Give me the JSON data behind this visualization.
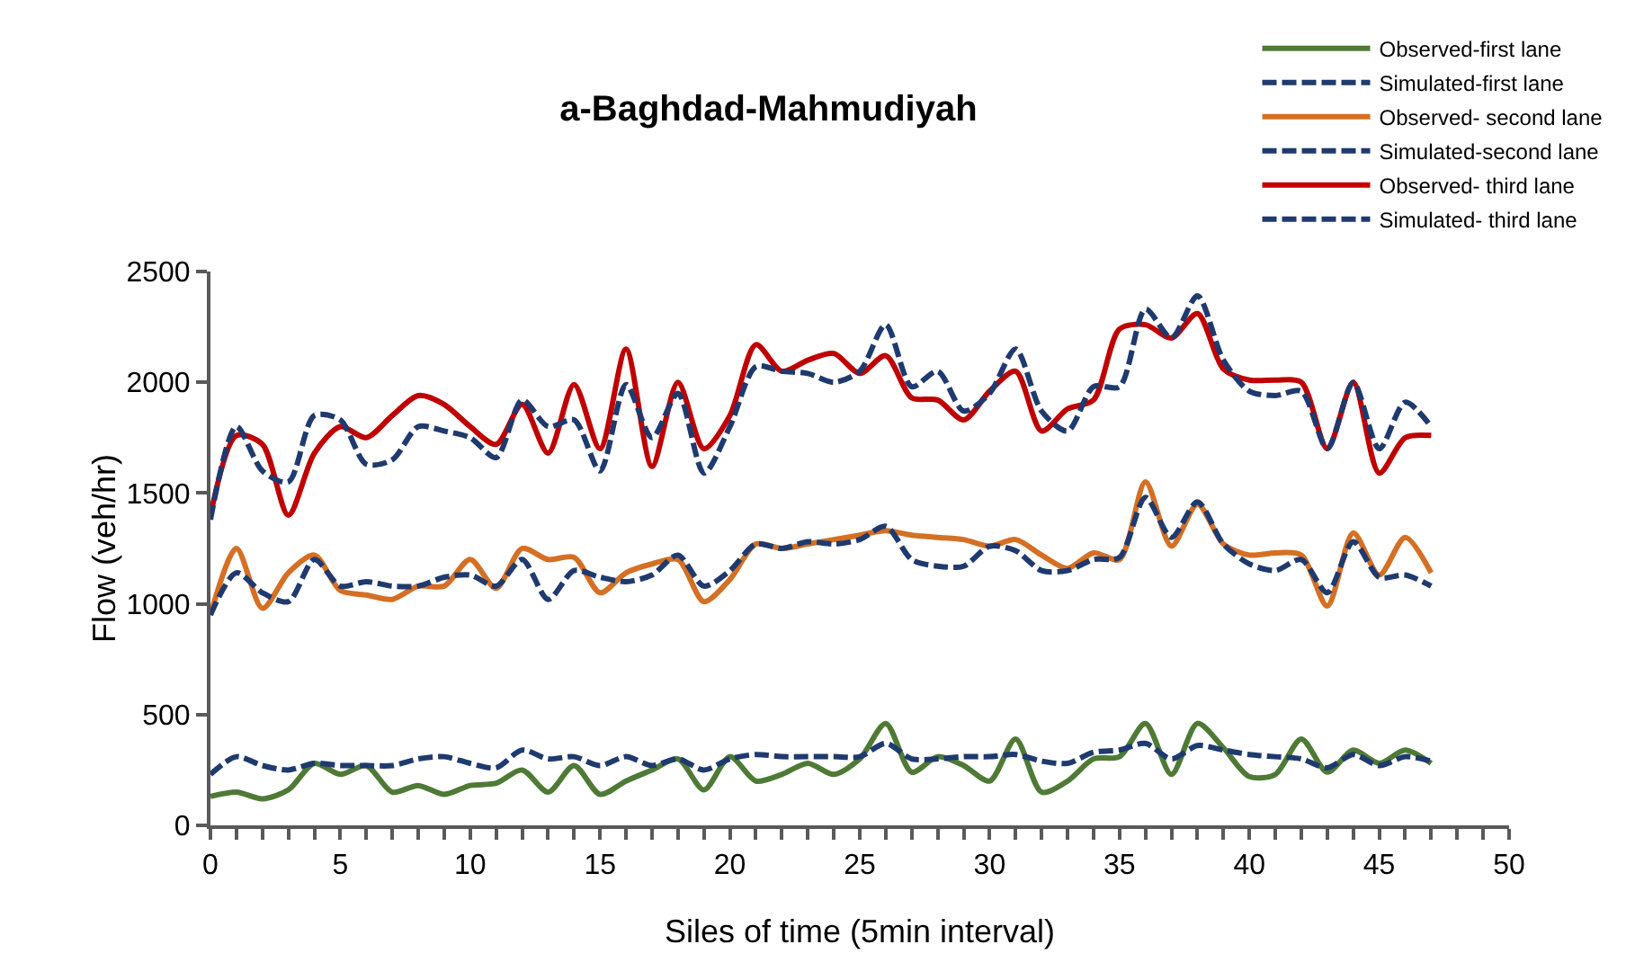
{
  "chart_data": {
    "type": "line",
    "title": "a-Baghdad-Mahmudiyah",
    "xlabel": "Siles of time (5min interval)",
    "ylabel": "Flow (veh/hr)",
    "x": [
      0,
      1,
      2,
      3,
      4,
      5,
      6,
      7,
      8,
      9,
      10,
      11,
      12,
      13,
      14,
      15,
      16,
      17,
      18,
      19,
      20,
      21,
      22,
      23,
      24,
      25,
      26,
      27,
      28,
      29,
      30,
      31,
      32,
      33,
      34,
      35,
      36,
      37,
      38,
      39,
      40,
      41,
      42,
      43,
      44,
      45,
      46,
      47
    ],
    "series": [
      {
        "name": "Observed-first lane",
        "color": "#4e7a35",
        "line_style": "solid",
        "values": [
          130,
          150,
          120,
          160,
          280,
          230,
          270,
          150,
          180,
          140,
          180,
          190,
          250,
          150,
          270,
          140,
          200,
          250,
          300,
          160,
          310,
          200,
          230,
          280,
          230,
          300,
          460,
          240,
          310,
          270,
          200,
          390,
          150,
          200,
          300,
          310,
          460,
          230,
          460,
          350,
          220,
          230,
          390,
          240,
          340,
          280,
          340,
          280
        ]
      },
      {
        "name": "Simulated-first lane",
        "color": "#1f3a6e",
        "line_style": "dashed",
        "values": [
          230,
          310,
          270,
          250,
          280,
          270,
          270,
          270,
          300,
          310,
          280,
          260,
          340,
          300,
          310,
          270,
          310,
          270,
          300,
          250,
          300,
          320,
          310,
          310,
          310,
          310,
          370,
          300,
          300,
          310,
          310,
          320,
          290,
          280,
          330,
          340,
          370,
          300,
          360,
          340,
          320,
          310,
          300,
          260,
          320,
          270,
          310,
          290
        ]
      },
      {
        "name": "Observed- second lane",
        "color": "#d46f24",
        "line_style": "solid",
        "values": [
          950,
          1250,
          980,
          1140,
          1220,
          1060,
          1040,
          1020,
          1080,
          1080,
          1200,
          1070,
          1250,
          1200,
          1210,
          1050,
          1140,
          1180,
          1200,
          1010,
          1110,
          1270,
          1250,
          1270,
          1290,
          1310,
          1330,
          1310,
          1300,
          1290,
          1260,
          1290,
          1220,
          1160,
          1230,
          1200,
          1550,
          1260,
          1450,
          1270,
          1220,
          1230,
          1220,
          990,
          1320,
          1130,
          1300,
          1140
        ]
      },
      {
        "name": "Simulated-second lane",
        "color": "#1f3a6e",
        "line_style": "dashed",
        "values": [
          950,
          1140,
          1050,
          1010,
          1200,
          1080,
          1100,
          1080,
          1080,
          1120,
          1130,
          1080,
          1200,
          1020,
          1150,
          1120,
          1100,
          1130,
          1220,
          1080,
          1150,
          1270,
          1250,
          1280,
          1270,
          1290,
          1350,
          1200,
          1170,
          1170,
          1260,
          1240,
          1150,
          1150,
          1200,
          1210,
          1480,
          1300,
          1460,
          1270,
          1180,
          1150,
          1200,
          1050,
          1280,
          1120,
          1130,
          1080
        ]
      },
      {
        "name": "Observed- third lane",
        "color": "#c00000",
        "line_style": "solid",
        "values": [
          1400,
          1760,
          1720,
          1400,
          1680,
          1800,
          1750,
          1850,
          1940,
          1900,
          1800,
          1720,
          1900,
          1680,
          1990,
          1700,
          2150,
          1620,
          2000,
          1700,
          1850,
          2170,
          2050,
          2100,
          2130,
          2040,
          2120,
          1930,
          1920,
          1830,
          1960,
          2050,
          1780,
          1880,
          1920,
          2240,
          2260,
          2200,
          2310,
          2060,
          2010,
          2010,
          2000,
          1700,
          2000,
          1590,
          1750,
          1760
        ]
      },
      {
        "name": "Simulated- third lane",
        "color": "#1f3a6e",
        "line_style": "dashed",
        "values": [
          1380,
          1800,
          1600,
          1550,
          1850,
          1830,
          1630,
          1650,
          1800,
          1780,
          1750,
          1660,
          1920,
          1800,
          1830,
          1600,
          1990,
          1750,
          1950,
          1590,
          1800,
          2070,
          2050,
          2040,
          2000,
          2050,
          2260,
          1980,
          2050,
          1870,
          1950,
          2150,
          1870,
          1780,
          1980,
          1980,
          2330,
          2200,
          2390,
          2100,
          1960,
          1940,
          1960,
          1700,
          2000,
          1700,
          1910,
          1800
        ]
      }
    ],
    "xlim": [
      0,
      50
    ],
    "xticks": [
      0,
      {
        "value": 1,
        "label": null
      },
      {
        "value": 2,
        "label": null
      },
      {
        "value": 3,
        "label": null
      },
      {
        "value": 4,
        "label": null
      },
      5,
      {
        "value": 6,
        "label": null
      },
      {
        "value": 7,
        "label": null
      },
      {
        "value": 8,
        "label": null
      },
      {
        "value": 9,
        "label": null
      },
      10,
      {
        "value": 11,
        "label": null
      },
      {
        "value": 12,
        "label": null
      },
      {
        "value": 13,
        "label": null
      },
      {
        "value": 14,
        "label": null
      },
      15,
      {
        "value": 16,
        "label": null
      },
      {
        "value": 17,
        "label": null
      },
      {
        "value": 18,
        "label": null
      },
      {
        "value": 19,
        "label": null
      },
      20,
      {
        "value": 21,
        "label": null
      },
      {
        "value": 22,
        "label": null
      },
      {
        "value": 23,
        "label": null
      },
      {
        "value": 24,
        "label": null
      },
      25,
      {
        "value": 26,
        "label": null
      },
      {
        "value": 27,
        "label": null
      },
      {
        "value": 28,
        "label": null
      },
      {
        "value": 29,
        "label": null
      },
      30,
      {
        "value": 31,
        "label": null
      },
      {
        "value": 32,
        "label": null
      },
      {
        "value": 33,
        "label": null
      },
      {
        "value": 34,
        "label": null
      },
      35,
      {
        "value": 36,
        "label": null
      },
      {
        "value": 37,
        "label": null
      },
      {
        "value": 38,
        "label": null
      },
      {
        "value": 39,
        "label": null
      },
      40,
      {
        "value": 41,
        "label": null
      },
      {
        "value": 42,
        "label": null
      },
      {
        "value": 43,
        "label": null
      },
      {
        "value": 44,
        "label": null
      },
      45,
      {
        "value": 46,
        "label": null
      },
      {
        "value": 47,
        "label": null
      },
      {
        "value": 48,
        "label": null
      },
      {
        "value": 49,
        "label": null
      },
      50
    ],
    "ylim": [
      0,
      2500
    ],
    "yticks": [
      0,
      500,
      1000,
      1500,
      2000,
      2500
    ],
    "grid": false,
    "legend": "top right",
    "marker": "none"
  }
}
